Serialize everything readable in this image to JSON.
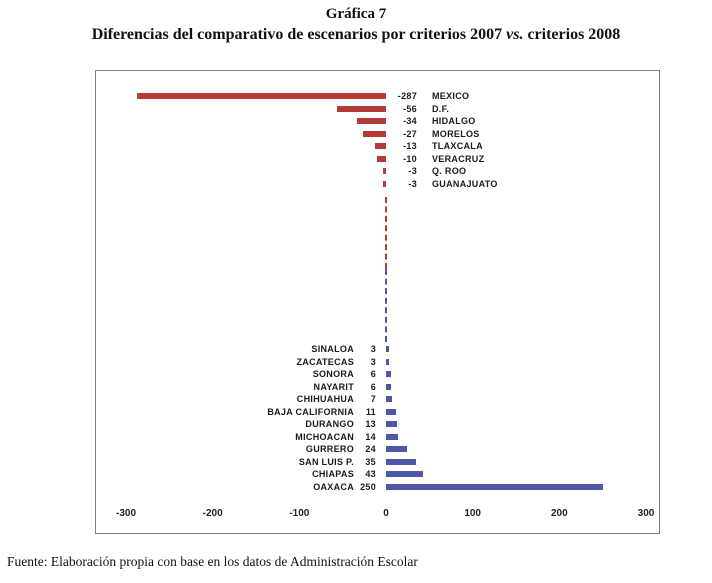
{
  "title": {
    "line1": "Gráfica 7",
    "line2_pre": "Diferencias del comparativo de escenarios por criterios 2007",
    "line2_vs": "vs.",
    "line2_post": "criterios 2008"
  },
  "footer": "Fuente: Elaboración propia con base en los datos de Administración Escolar",
  "chart_data": {
    "type": "bar",
    "orientation": "horizontal",
    "title": "Gráfica 7 — Diferencias del comparativo de escenarios por criterios 2007 vs. criterios 2008",
    "xlabel": "",
    "ylabel": "",
    "xlim": [
      -300,
      300
    ],
    "x_ticks": [
      -300,
      -200,
      -100,
      0,
      100,
      200,
      300
    ],
    "grid": false,
    "legend": false,
    "zero_line": "dashed",
    "negative_color": "#b23b38",
    "positive_color": "#4f58a6",
    "negative_series": [
      {
        "label": "MEXICO",
        "value": -287
      },
      {
        "label": "D.F.",
        "value": -56
      },
      {
        "label": "HIDALGO",
        "value": -34
      },
      {
        "label": "MORELOS",
        "value": -27
      },
      {
        "label": "TLAXCALA",
        "value": -13
      },
      {
        "label": "VERACRUZ",
        "value": -10
      },
      {
        "label": "Q. ROO",
        "value": -3
      },
      {
        "label": "GUANAJUATO",
        "value": -3
      }
    ],
    "positive_series": [
      {
        "label": "SINALOA",
        "value": 3
      },
      {
        "label": "ZACATECAS",
        "value": 3
      },
      {
        "label": "SONORA",
        "value": 6
      },
      {
        "label": "NAYARIT",
        "value": 6
      },
      {
        "label": "CHIHUAHUA",
        "value": 7
      },
      {
        "label": "BAJA CALIFORNIA",
        "value": 11
      },
      {
        "label": "DURANGO",
        "value": 13
      },
      {
        "label": "MICHOACAN",
        "value": 14
      },
      {
        "label": "GURRERO",
        "value": 24
      },
      {
        "label": "SAN LUIS P.",
        "value": 35
      },
      {
        "label": "CHIAPAS",
        "value": 43
      },
      {
        "label": "OAXACA",
        "value": 250
      }
    ]
  }
}
